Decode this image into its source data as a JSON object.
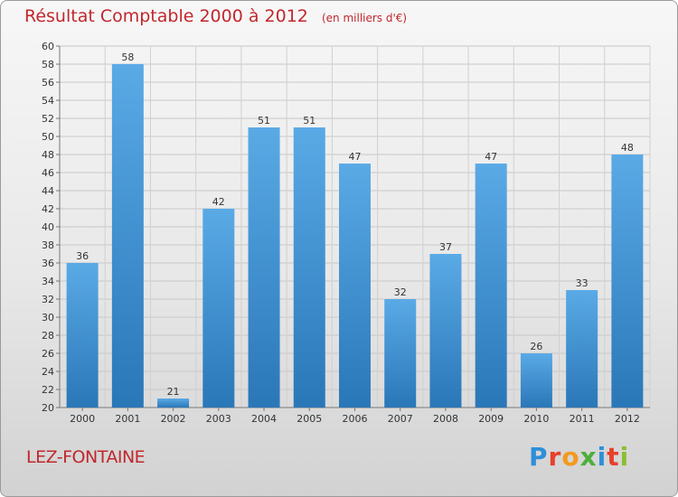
{
  "chart_data": {
    "type": "bar",
    "title": "Résultat Comptable 2000 à 2012",
    "subtitle": "(en milliers d'€)",
    "categories": [
      "2000",
      "2001",
      "2002",
      "2003",
      "2004",
      "2005",
      "2006",
      "2007",
      "2008",
      "2009",
      "2010",
      "2011",
      "2012"
    ],
    "values": [
      36,
      58,
      21,
      42,
      51,
      51,
      47,
      32,
      37,
      47,
      26,
      33,
      48
    ],
    "ylim": [
      20,
      60
    ],
    "ytick_step": 2,
    "xlabel": "",
    "ylabel": "",
    "grid": true,
    "bar_color_top": "#5aaae6",
    "bar_color_bottom": "#2a77b8"
  },
  "commune": "LEZ-FONTAINE",
  "brand": {
    "letters": [
      "P",
      "r",
      "o",
      "x",
      "i",
      "t",
      "i"
    ],
    "colors": [
      "#2f8fd8",
      "#e8402a",
      "#f29a1d",
      "#4caf3c",
      "#2f8fd8",
      "#e8402a",
      "#8cbf2f"
    ]
  }
}
